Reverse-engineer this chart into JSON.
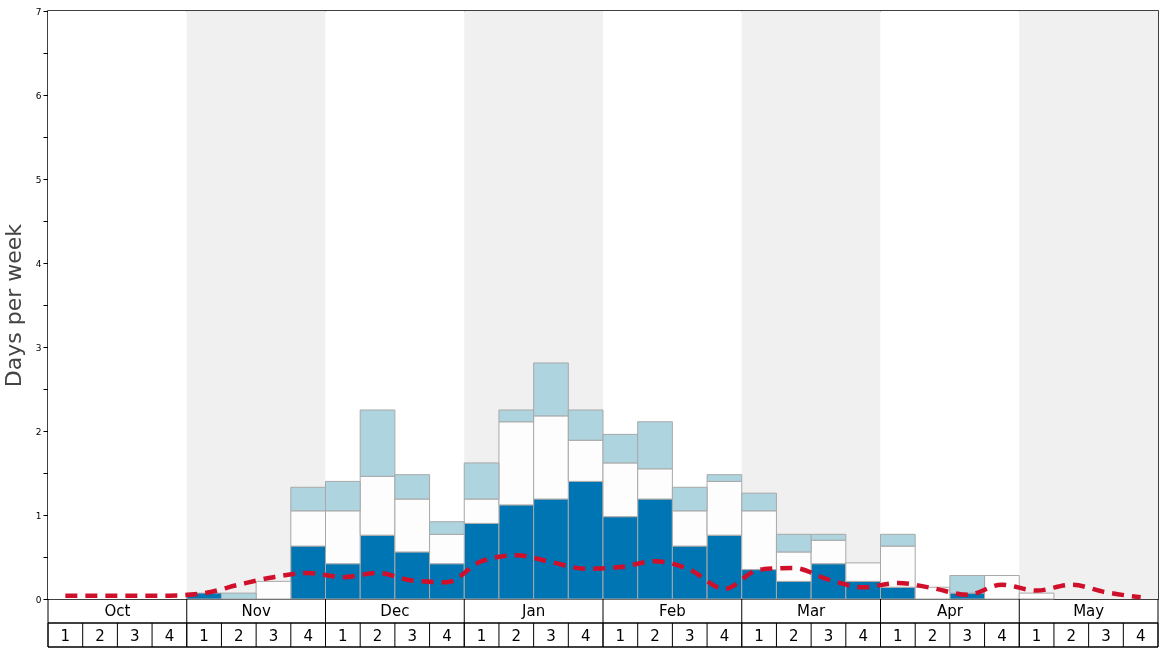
{
  "chart_data": {
    "type": "bar",
    "stacked": true,
    "ylabel": "Days per week",
    "categories": [
      "1",
      "2",
      "3",
      "4",
      "1",
      "2",
      "3",
      "4",
      "1",
      "2",
      "3",
      "4",
      "1",
      "2",
      "3",
      "4",
      "1",
      "2",
      "3",
      "4",
      "1",
      "2",
      "3",
      "4",
      "1",
      "2",
      "3",
      "4",
      "1",
      "2",
      "3",
      "4"
    ],
    "series": [
      {
        "color": "#0075b4",
        "values": [
          0,
          0,
          0,
          0,
          0.07,
          0,
          0,
          0.63,
          0.42,
          0.76,
          0.56,
          0.42,
          0.9,
          1.12,
          1.19,
          1.4,
          0.98,
          1.19,
          0.63,
          0.76,
          0.35,
          0.21,
          0.42,
          0.21,
          0.14,
          0,
          0.07,
          0,
          0,
          0,
          0,
          0
        ]
      },
      {
        "color": "#fdfdfd",
        "values": [
          0,
          0,
          0,
          0,
          0,
          0,
          0.21,
          0.42,
          0.63,
          0.7,
          0.63,
          0.35,
          0.29,
          0.99,
          0.99,
          0.49,
          0.64,
          0.36,
          0.42,
          0.64,
          0.7,
          0.35,
          0.28,
          0.22,
          0.49,
          0.14,
          0,
          0.28,
          0.07,
          0,
          0,
          0
        ]
      },
      {
        "color": "#aed4e0",
        "values": [
          0,
          0,
          0,
          0,
          0,
          0.07,
          0,
          0.28,
          0.35,
          0.79,
          0.29,
          0.15,
          0.43,
          0.14,
          0.63,
          0.36,
          0.34,
          0.56,
          0.28,
          0.08,
          0.21,
          0.21,
          0.07,
          0,
          0.14,
          0,
          0.21,
          0,
          0,
          0,
          0,
          0
        ]
      },
      {
        "type": "line",
        "color": "#d0102a",
        "line_style": "dashed",
        "marker": "none",
        "values": [
          0.04,
          0.04,
          0.04,
          0.04,
          0.07,
          0.17,
          0.26,
          0.31,
          0.26,
          0.31,
          0.22,
          0.2,
          0.45,
          0.52,
          0.44,
          0.36,
          0.38,
          0.45,
          0.35,
          0.12,
          0.35,
          0.37,
          0.23,
          0.14,
          0.19,
          0.13,
          0.05,
          0.17,
          0.1,
          0.17,
          0.08,
          0.02
        ]
      }
    ],
    "ylim": [
      0,
      7
    ],
    "yticks": [
      0,
      {
        "value": 0.5,
        "label": null
      },
      1,
      {
        "value": 1.5,
        "label": null
      },
      2,
      {
        "value": 2.5,
        "label": null
      },
      3,
      {
        "value": 3.5,
        "label": null
      },
      4,
      {
        "value": 4.5,
        "label": null
      },
      5,
      {
        "value": 5.5,
        "label": null
      },
      6,
      {
        "value": 6.5,
        "label": null
      },
      7
    ],
    "annotations": [
      "Oct",
      "Nov",
      "Dec",
      "Jan",
      "Feb",
      "Mar",
      "Apr",
      "May"
    ],
    "grid": false
  }
}
